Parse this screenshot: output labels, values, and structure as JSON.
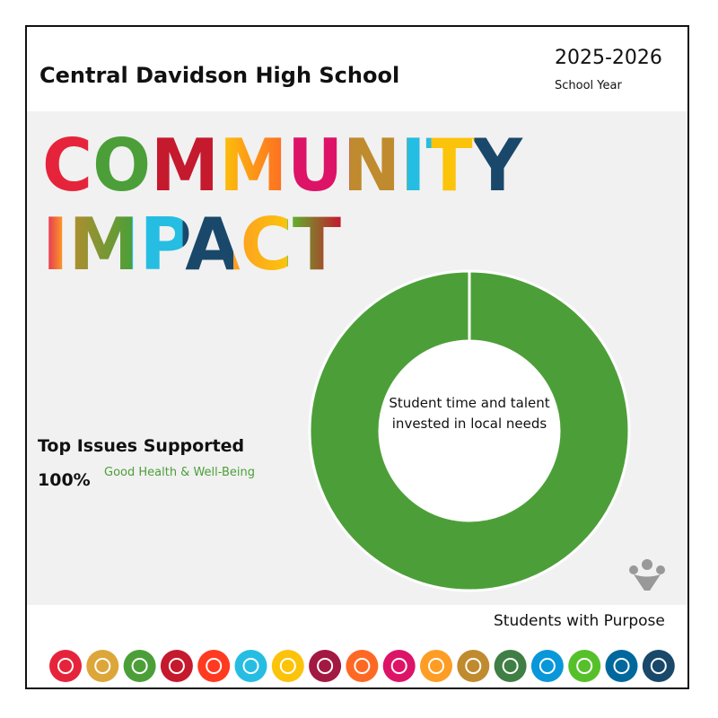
{
  "header": {
    "school": "Central Davidson High School",
    "year": "2025-2026",
    "year_label": "School Year"
  },
  "headline": [
    "COMMUNITY",
    "IMPACT"
  ],
  "issues_title": "Top Issues Supported",
  "chart_data": {
    "type": "donut",
    "center_text": "Student time and talent invested in local needs",
    "categories": [
      "Good Health & Well-Being"
    ],
    "values": [
      100
    ],
    "value_labels": [
      "100%"
    ],
    "colors": [
      "#4c9f38"
    ]
  },
  "footer": "Students with Purpose"
}
